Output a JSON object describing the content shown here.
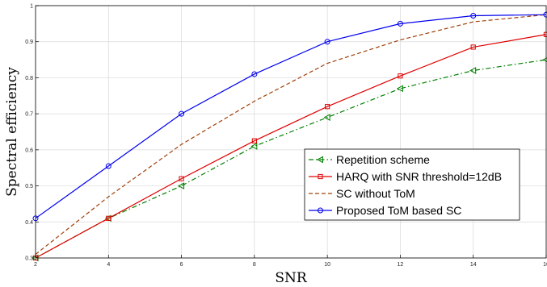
{
  "chart_data": {
    "type": "line",
    "xlabel": "SNR",
    "ylabel": "Spectral efficiency",
    "xlim": [
      2,
      16
    ],
    "ylim": [
      0.3,
      1.0
    ],
    "xticks": [
      2,
      4,
      6,
      8,
      10,
      12,
      14,
      16
    ],
    "yticks": [
      0.3,
      0.4,
      0.5,
      0.6,
      0.7,
      0.8,
      0.9,
      1.0
    ],
    "x_tick_labels": [
      "2",
      "4",
      "6",
      "8",
      "10",
      "12",
      "14",
      "16"
    ],
    "y_tick_labels": [
      "0.3",
      "0.4",
      "0.5",
      "0.6",
      "0.7",
      "0.8",
      "0.9",
      "1"
    ],
    "grid": true,
    "legend_position": "lower-right",
    "x": [
      2,
      4,
      6,
      8,
      10,
      12,
      14,
      16
    ],
    "series": [
      {
        "name": "Repetition scheme",
        "values": [
          0.3,
          0.41,
          0.5,
          0.61,
          0.69,
          0.77,
          0.82,
          0.85
        ],
        "color": "#008000",
        "dash": "dashdot",
        "marker": "triangle-left"
      },
      {
        "name": "HARQ with SNR threshold=12dB",
        "values": [
          0.3,
          0.41,
          0.52,
          0.625,
          0.72,
          0.805,
          0.885,
          0.92
        ],
        "color": "#e00000",
        "dash": "solid",
        "marker": "square"
      },
      {
        "name": "SC without ToM",
        "values": [
          0.31,
          0.47,
          0.615,
          0.735,
          0.84,
          0.905,
          0.955,
          0.975
        ],
        "color": "#a0400a",
        "dash": "dashed",
        "marker": "none"
      },
      {
        "name": "Proposed ToM based SC",
        "values": [
          0.41,
          0.555,
          0.7,
          0.81,
          0.9,
          0.95,
          0.972,
          0.975
        ],
        "color": "#0000ee",
        "dash": "solid",
        "marker": "circle"
      }
    ]
  }
}
